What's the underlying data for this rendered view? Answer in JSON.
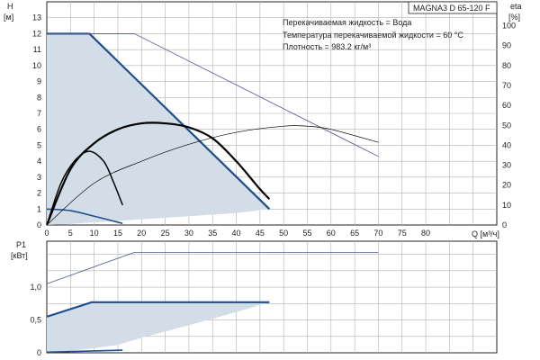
{
  "chart_data": [
    {
      "type": "line",
      "title": "MAGNA3 D 65-120 F",
      "annotations": [
        "Перекачиваемая жидкость = Вода",
        "Температура перекачиваемой жидкости = 60 °C",
        "Плотность = 983.2 кг/м³"
      ],
      "xlabel": "Q [м³/ч]",
      "ylabel": "H",
      "ylabel_unit": "[м]",
      "y2label": "eta",
      "y2label_unit": "[%]",
      "xlim": [
        0,
        95
      ],
      "ylim": [
        0,
        14
      ],
      "y2lim": [
        0,
        112
      ],
      "x_ticks": [
        "0",
        "5",
        "10",
        "15",
        "20",
        "25",
        "30",
        "35",
        "40",
        "45",
        "50",
        "55",
        "60",
        "65",
        "70",
        "75",
        "80"
      ],
      "y_ticks": [
        "0",
        "1",
        "2",
        "3",
        "4",
        "5",
        "6",
        "7",
        "8",
        "9",
        "10",
        "11",
        "12",
        "13"
      ],
      "y2_ticks": [
        "0",
        "10",
        "20",
        "30",
        "40",
        "50",
        "60",
        "70",
        "80",
        "90",
        "100"
      ],
      "grid": true,
      "colors": {
        "operating_area": "#d3dde7",
        "head_curve": "#1f4e8c",
        "efficiency_curve": "#000000",
        "thin_curve": "#4a5a86"
      },
      "series": [
        {
          "role": "operating-area",
          "x": [
            0,
            9,
            47,
            40,
            30,
            20,
            10,
            5,
            0
          ],
          "y": [
            12,
            12,
            1,
            0.75,
            0.55,
            0.35,
            0.17,
            0.07,
            0
          ]
        },
        {
          "role": "head-max",
          "x": [
            0,
            9,
            47
          ],
          "y": [
            12,
            12,
            1
          ]
        },
        {
          "role": "head-min",
          "x": [
            0,
            5,
            10,
            16
          ],
          "y": [
            1,
            0.9,
            0.55,
            0.1
          ]
        },
        {
          "role": "head-single-pump-max",
          "x": [
            0,
            18.5,
            70
          ],
          "y": [
            12,
            12,
            4.3
          ]
        },
        {
          "role": "efficiency-max",
          "axis": "y2",
          "x": [
            0,
            5,
            10,
            15,
            20,
            25,
            30,
            35,
            40,
            45,
            47
          ],
          "y": [
            0,
            28,
            41,
            48,
            51,
            51,
            49,
            43.5,
            32,
            18,
            13
          ]
        },
        {
          "role": "efficiency-min",
          "axis": "y2",
          "x": [
            0,
            3,
            6,
            9,
            12,
            14,
            16
          ],
          "y": [
            0,
            21,
            32.5,
            37,
            32,
            22,
            10
          ]
        },
        {
          "role": "efficiency-single-pump",
          "axis": "y2",
          "x": [
            0,
            10,
            20,
            30,
            40,
            50,
            55,
            60,
            70
          ],
          "y": [
            0,
            21,
            32,
            40.5,
            46.5,
            49.6,
            49.6,
            48,
            41.5
          ]
        }
      ]
    },
    {
      "type": "line",
      "ylabel": "P1",
      "ylabel_unit": "[кВт]",
      "xlim": [
        0,
        95
      ],
      "ylim": [
        0,
        1.7
      ],
      "y_ticks": [
        "0",
        "0,5",
        "1,0"
      ],
      "y_tick_values": [
        0,
        0.5,
        1.0
      ],
      "grid": true,
      "series": [
        {
          "role": "power-area",
          "x": [
            0,
            9.5,
            47,
            40,
            30,
            20,
            15,
            10,
            5,
            0
          ],
          "y": [
            0.55,
            0.77,
            0.77,
            0.62,
            0.42,
            0.23,
            0.12,
            0.07,
            0.03,
            0
          ],
          "fill": true
        },
        {
          "role": "power-max",
          "x": [
            0,
            9.5,
            47
          ],
          "y": [
            0.55,
            0.77,
            0.77
          ]
        },
        {
          "role": "power-min",
          "x": [
            0,
            16
          ],
          "y": [
            0.01,
            0.04
          ]
        },
        {
          "role": "power-single-pump-max",
          "x": [
            0,
            18.5,
            70
          ],
          "y": [
            1.05,
            1.53,
            1.53
          ]
        }
      ]
    }
  ]
}
